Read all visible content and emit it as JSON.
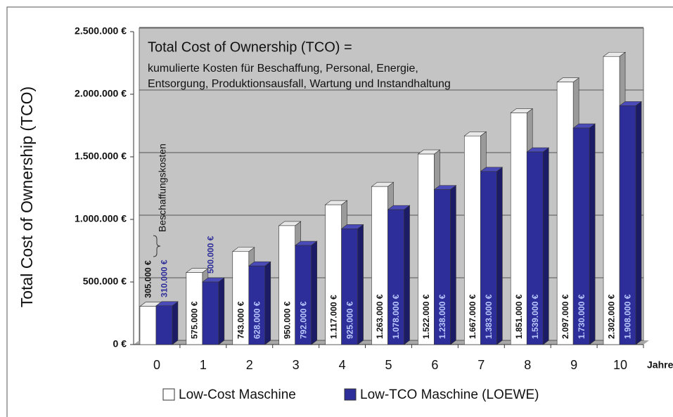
{
  "chart_data": {
    "type": "bar",
    "title": "Total Cost of Ownership (TCO) =",
    "subtitle": [
      "kumulierte Kosten für Beschaffung, Personal, Energie,",
      "Entsorgung, Produktionsausfall, Wartung und Instandhaltung"
    ],
    "y_label": "Total Cost of Ownership (TCO)",
    "x_unit": "Jahre",
    "annotation": "Beschaffungskosten",
    "categories": [
      "0",
      "1",
      "2",
      "3",
      "4",
      "5",
      "6",
      "7",
      "8",
      "9",
      "10"
    ],
    "series": [
      {
        "name": "Low-Cost Maschine",
        "color": "#ffffff",
        "values": [
          305000,
          575000,
          743000,
          950000,
          1117000,
          1263000,
          1522000,
          1667000,
          1851000,
          2097000,
          2302000
        ],
        "value_labels": [
          "305.000 €",
          "575.000 €",
          "743.000 €",
          "950.000 €",
          "1.117.000 €",
          "1.263.000 €",
          "1.522.000 €",
          "1.667.000 €",
          "1.851.000 €",
          "2.097.000 €",
          "2.302.000 €"
        ]
      },
      {
        "name": "Low-TCO Maschine (LOEWE)",
        "color": "#2e2e9a",
        "values": [
          310000,
          500000,
          628000,
          792000,
          925000,
          1078000,
          1238000,
          1383000,
          1539000,
          1730000,
          1908000
        ],
        "value_labels": [
          "310.000 €",
          "500.000 €",
          "628.000 €",
          "792.000 €",
          "925.000 €",
          "1.078.000 €",
          "1.238.000 €",
          "1.383.000 €",
          "1.539.000 €",
          "1.730.000 €",
          "1.908.000 €"
        ]
      }
    ],
    "ylim": [
      0,
      2500000
    ],
    "yticks": [
      {
        "value": 0,
        "label": "0 €"
      },
      {
        "value": 500000,
        "label": "500.000 €"
      },
      {
        "value": 1000000,
        "label": "1.000.000 €"
      },
      {
        "value": 1500000,
        "label": "1.500.000 €"
      },
      {
        "value": 2000000,
        "label": "2.000.000 €"
      },
      {
        "value": 2500000,
        "label": "2.500.000 €"
      }
    ],
    "grid": true
  }
}
